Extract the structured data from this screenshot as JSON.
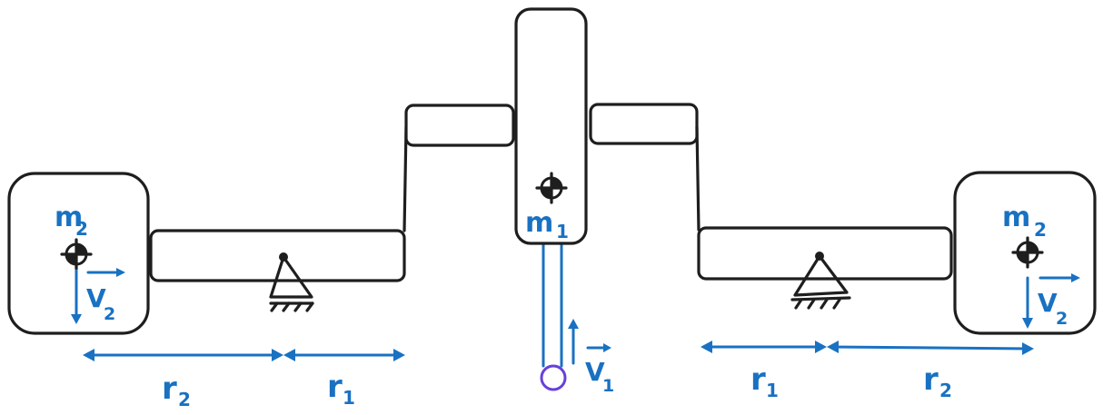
{
  "colors": {
    "ink": "#1e1e1e",
    "annotation": "#1971c2",
    "marker": "#6741d9"
  },
  "center_mass": {
    "symbol": "m",
    "subscript": "1"
  },
  "left_mass": {
    "symbol": "m",
    "subscript": "2"
  },
  "right_mass": {
    "symbol": "m",
    "subscript": "2"
  },
  "velocity_1": {
    "symbol": "V",
    "subscript": "1"
  },
  "velocity_2_left": {
    "symbol": "V",
    "subscript": "2"
  },
  "velocity_2_right": {
    "symbol": "V",
    "subscript": "2"
  },
  "dim_left_r2": {
    "symbol": "r",
    "subscript": "2"
  },
  "dim_left_r1": {
    "symbol": "r",
    "subscript": "1"
  },
  "dim_right_r1": {
    "symbol": "r",
    "subscript": "1"
  },
  "dim_right_r2": {
    "symbol": "r",
    "subscript": "2"
  },
  "icons": {
    "center_of_mass": "center-of-mass-icon",
    "pivot": "pivot-support-icon",
    "marker": "circle-marker-icon"
  }
}
